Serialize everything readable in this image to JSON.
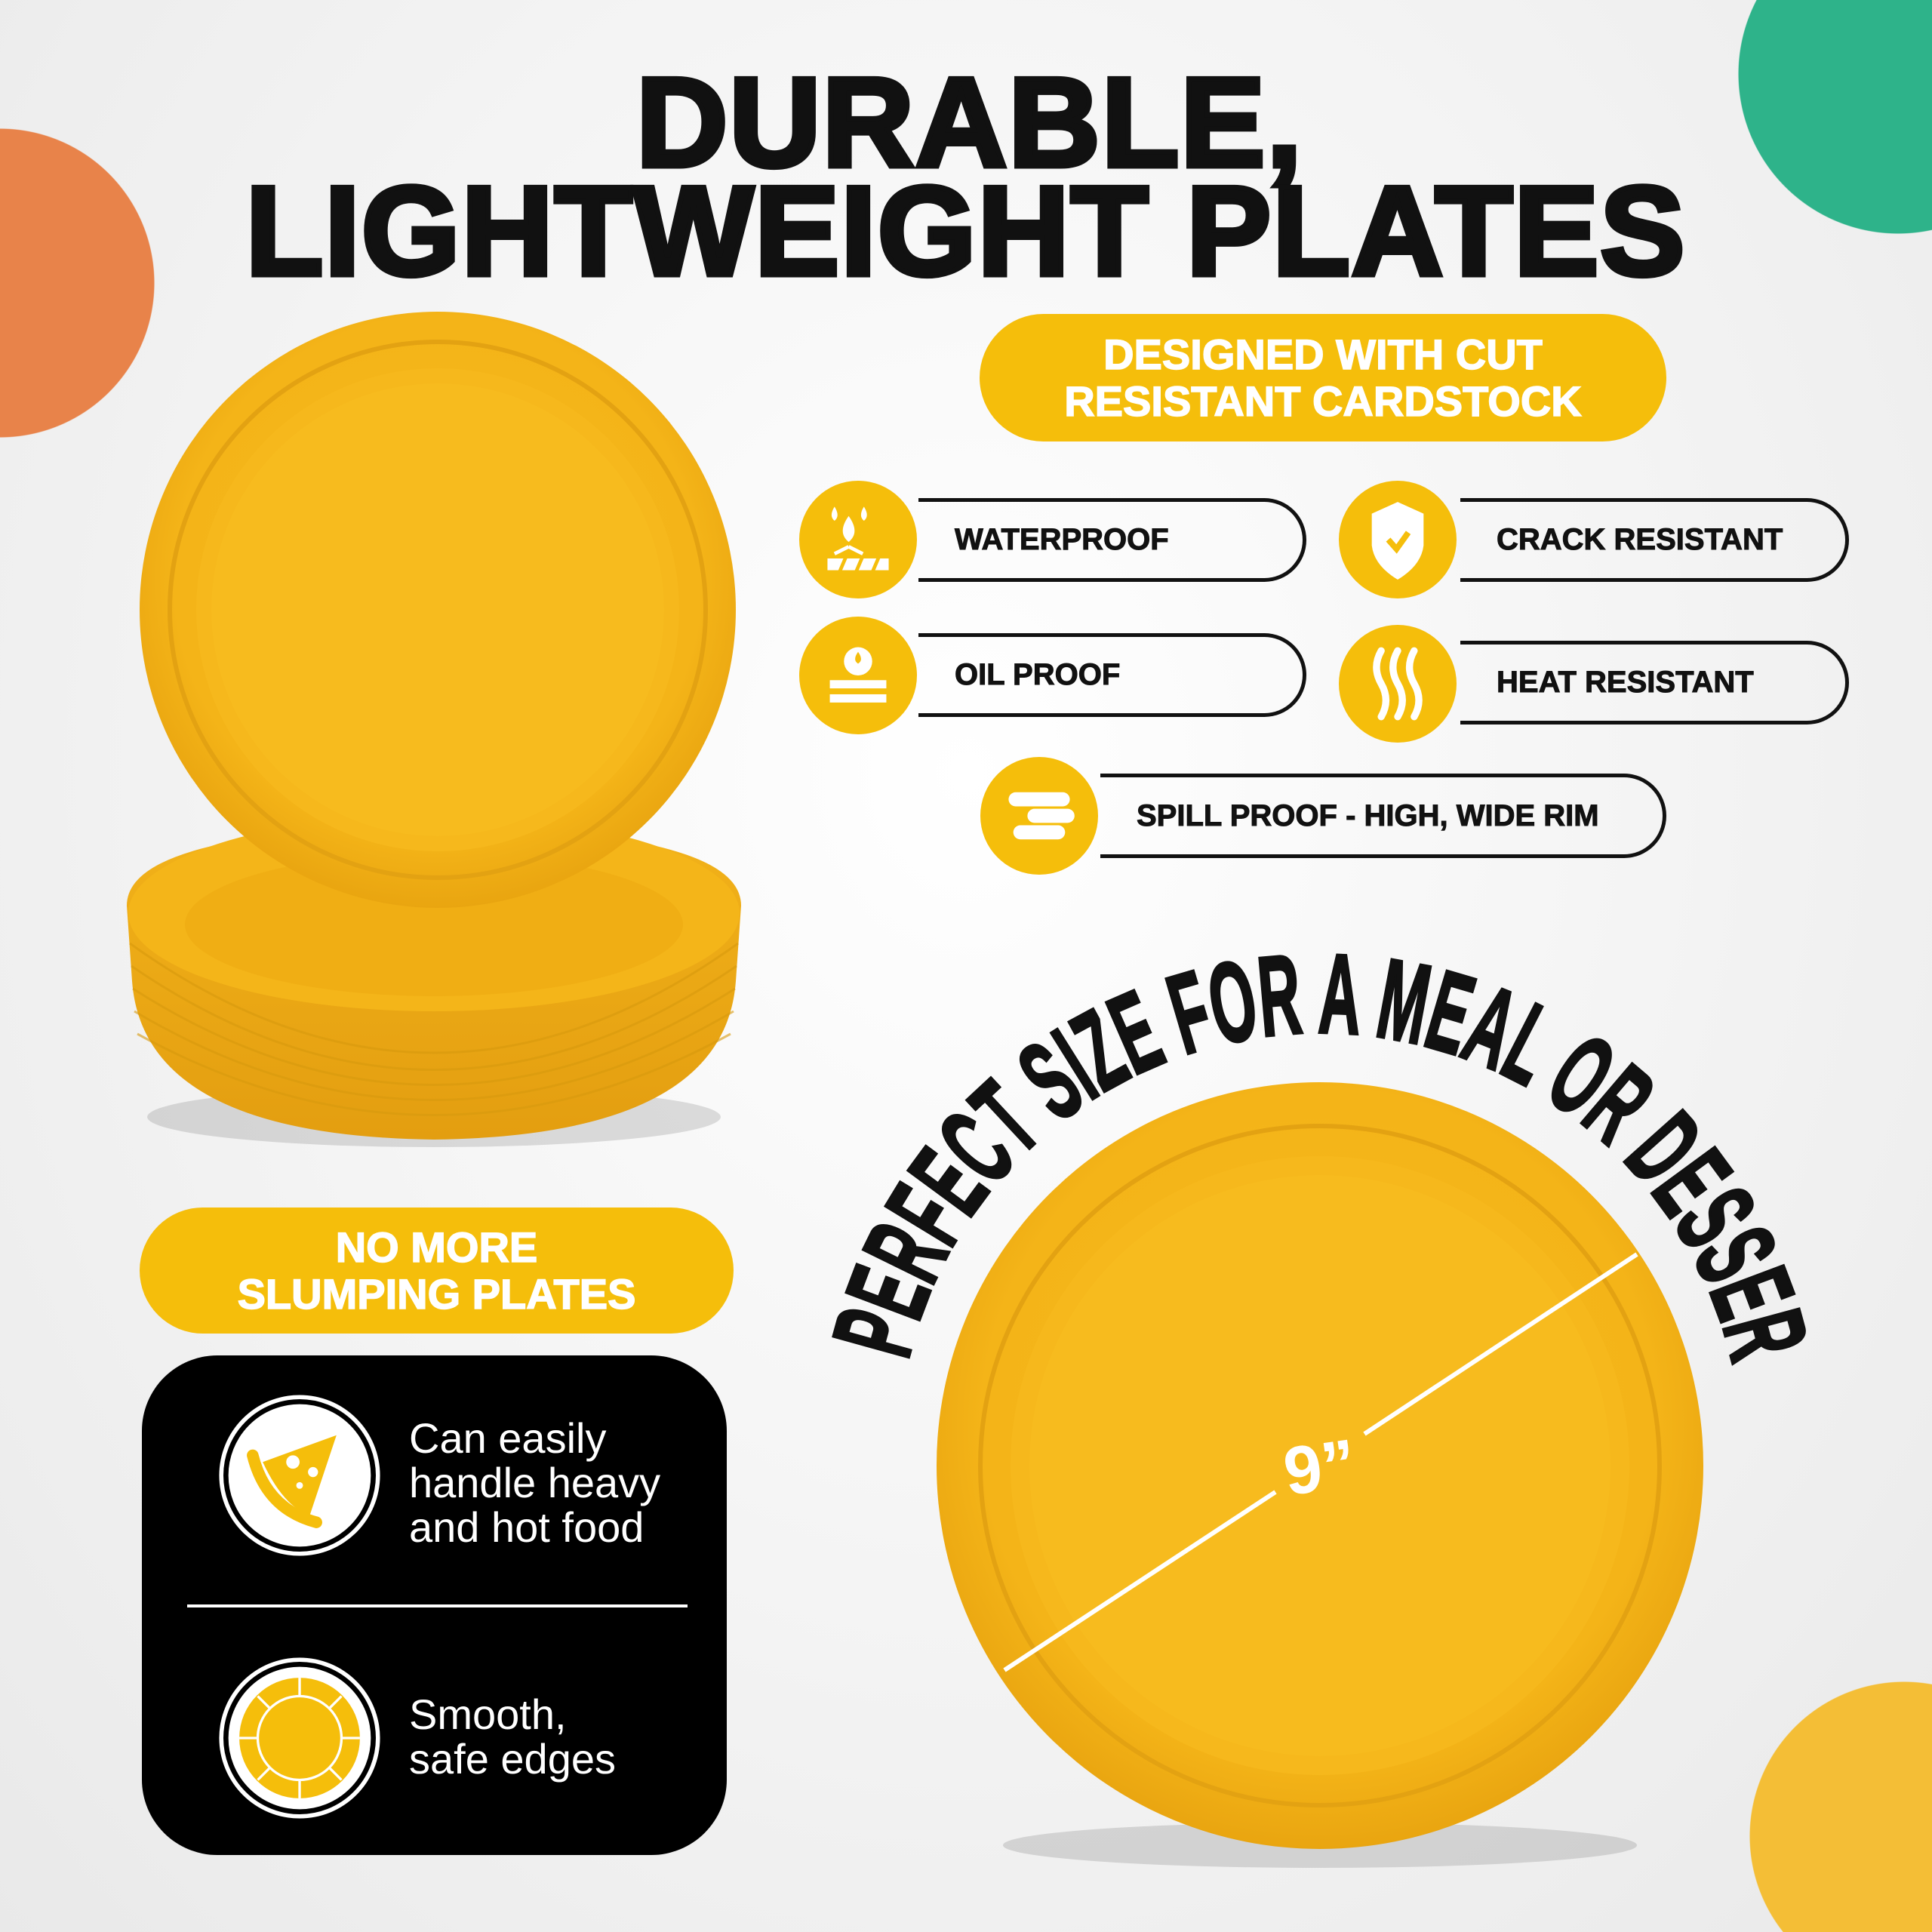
{
  "colors": {
    "brand_yellow": "#F5BE0B",
    "plate_yellow": "#F4B51A",
    "orange": "#E8834A",
    "green": "#2EB38A",
    "black": "#000000"
  },
  "header": {
    "title_line1": "DURABLE,",
    "title_line2": "LIGHTWEIGHT PLATES"
  },
  "badge": {
    "line1": "DESIGNED WITH CUT",
    "line2": "RESISTANT CARDSTOCK"
  },
  "features": [
    {
      "label": "WATERPROOF",
      "icon": "water-drops-icon"
    },
    {
      "label": "CRACK RESISTANT",
      "icon": "shield-check-icon"
    },
    {
      "label": "OIL PROOF",
      "icon": "oil-drop-layers-icon"
    },
    {
      "label": "HEAT RESISTANT",
      "icon": "heat-waves-icon"
    },
    {
      "label": "SPILL PROOF - HIGH, WIDE RIM",
      "icon": "plate-rim-icon"
    }
  ],
  "slump_badge": {
    "line1": "NO MORE",
    "line2": "SLUMPING PLATES"
  },
  "benefits": [
    {
      "lines": [
        "Can easily",
        "handle heavy",
        "and hot food"
      ],
      "icon": "pizza-slice-icon"
    },
    {
      "lines": [
        "Smooth,",
        "safe edges"
      ],
      "icon": "plate-edge-icon"
    }
  ],
  "size": {
    "headline": "PERFECT SIZE FOR A MEAL OR DESSERT",
    "diameter_label": "9”"
  }
}
